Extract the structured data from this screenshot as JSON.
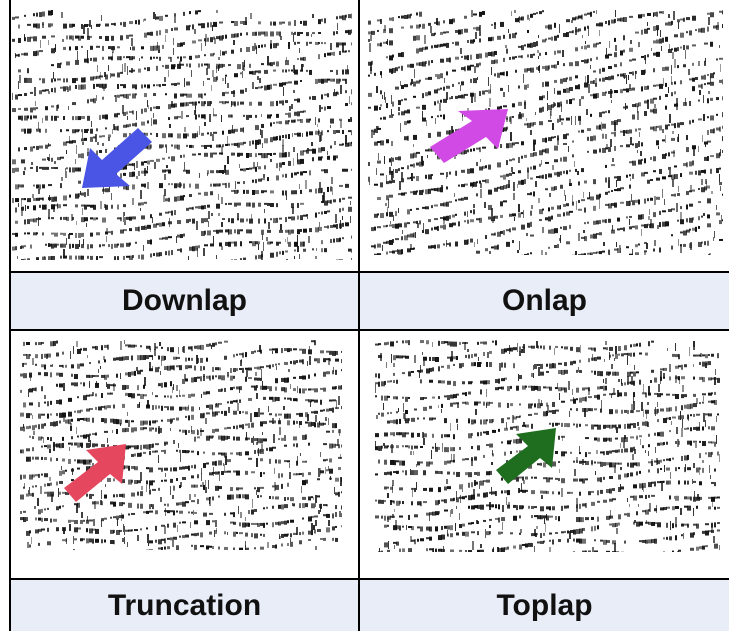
{
  "panels": [
    {
      "label": "Downlap",
      "arrow_color": "#4a55e6",
      "arrow_icon": "arrow-down-left-icon"
    },
    {
      "label": "Onlap",
      "arrow_color": "#d24ae6",
      "arrow_icon": "arrow-up-right-icon"
    },
    {
      "label": "Truncation",
      "arrow_color": "#e5485e",
      "arrow_icon": "arrow-up-right-icon"
    },
    {
      "label": "Toplap",
      "arrow_color": "#1f6e1f",
      "arrow_icon": "arrow-up-right-icon"
    }
  ],
  "colors": {
    "label_background": "#e9edf7",
    "border": "#000000",
    "seismic_ink": "#111111"
  }
}
